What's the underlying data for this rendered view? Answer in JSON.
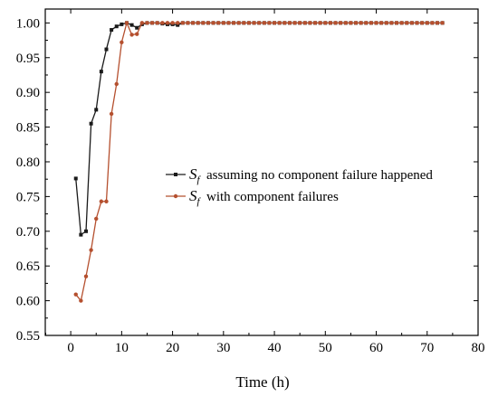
{
  "chart_data": {
    "type": "line",
    "title": "",
    "xlabel": "Time (h)",
    "ylabel": "",
    "xlim": [
      -5,
      80
    ],
    "ylim": [
      0.55,
      1.02
    ],
    "xticks": [
      0,
      10,
      20,
      30,
      40,
      50,
      60,
      70,
      80
    ],
    "yticks": [
      0.55,
      0.6,
      0.65,
      0.7,
      0.75,
      0.8,
      0.85,
      0.9,
      0.95,
      1.0
    ],
    "xtick_labels": [
      "0",
      "10",
      "20",
      "30",
      "40",
      "50",
      "60",
      "70",
      "80"
    ],
    "ytick_labels": [
      "0.55",
      "0.60",
      "0.65",
      "0.70",
      "0.75",
      "0.80",
      "0.85",
      "0.90",
      "0.95",
      "1.00"
    ],
    "grid": false,
    "legend_position": "center-right",
    "series": [
      {
        "name": "assuming no component failure happened",
        "symbol": "S",
        "subscript": "f",
        "color": "#1a1a1a",
        "x": [
          1,
          2,
          3,
          4,
          5,
          6,
          7,
          8,
          9,
          10,
          11,
          12,
          13,
          14,
          15,
          16,
          17,
          18,
          19,
          20,
          21,
          22,
          23,
          24,
          25,
          26,
          27,
          28,
          29,
          30,
          31,
          32,
          33,
          34,
          35,
          36,
          37,
          38,
          39,
          40,
          41,
          42,
          43,
          44,
          45,
          46,
          47,
          48,
          49,
          50,
          51,
          52,
          53,
          54,
          55,
          56,
          57,
          58,
          59,
          60,
          61,
          62,
          63,
          64,
          65,
          66,
          67,
          68,
          69,
          70,
          71,
          72,
          73
        ],
        "y": [
          0.776,
          0.695,
          0.7,
          0.855,
          0.875,
          0.93,
          0.962,
          0.99,
          0.995,
          0.998,
          1.0,
          0.997,
          0.993,
          0.998,
          1.0,
          1.0,
          1.0,
          0.999,
          0.998,
          0.998,
          0.997,
          1.0,
          1.0,
          1.0,
          1.0,
          1.0,
          1.0,
          1.0,
          1.0,
          1.0,
          1.0,
          1.0,
          1.0,
          1.0,
          1.0,
          1.0,
          1.0,
          1.0,
          1.0,
          1.0,
          1.0,
          1.0,
          1.0,
          1.0,
          1.0,
          1.0,
          1.0,
          1.0,
          1.0,
          1.0,
          1.0,
          1.0,
          1.0,
          1.0,
          1.0,
          1.0,
          1.0,
          1.0,
          1.0,
          1.0,
          1.0,
          1.0,
          1.0,
          1.0,
          1.0,
          1.0,
          1.0,
          1.0,
          1.0,
          1.0,
          1.0,
          1.0,
          1.0
        ]
      },
      {
        "name": "with component failures",
        "symbol": "S",
        "subscript": "f",
        "color": "#b5502f",
        "x": [
          1,
          2,
          3,
          4,
          5,
          6,
          7,
          8,
          9,
          10,
          11,
          12,
          13,
          14,
          15,
          16,
          17,
          18,
          19,
          20,
          21,
          22,
          23,
          24,
          25,
          26,
          27,
          28,
          29,
          30,
          31,
          32,
          33,
          34,
          35,
          36,
          37,
          38,
          39,
          40,
          41,
          42,
          43,
          44,
          45,
          46,
          47,
          48,
          49,
          50,
          51,
          52,
          53,
          54,
          55,
          56,
          57,
          58,
          59,
          60,
          61,
          62,
          63,
          64,
          65,
          66,
          67,
          68,
          69,
          70,
          71,
          72,
          73
        ],
        "y": [
          0.609,
          0.6,
          0.635,
          0.673,
          0.718,
          0.743,
          0.743,
          0.869,
          0.912,
          0.972,
          1.0,
          0.983,
          0.984,
          1.0,
          1.0,
          1.0,
          1.0,
          1.0,
          1.0,
          1.0,
          1.0,
          1.0,
          1.0,
          1.0,
          1.0,
          1.0,
          1.0,
          1.0,
          1.0,
          1.0,
          1.0,
          1.0,
          1.0,
          1.0,
          1.0,
          1.0,
          1.0,
          1.0,
          1.0,
          1.0,
          1.0,
          1.0,
          1.0,
          1.0,
          1.0,
          1.0,
          1.0,
          1.0,
          1.0,
          1.0,
          1.0,
          1.0,
          1.0,
          1.0,
          1.0,
          1.0,
          1.0,
          1.0,
          1.0,
          1.0,
          1.0,
          1.0,
          1.0,
          1.0,
          1.0,
          1.0,
          1.0,
          1.0,
          1.0,
          1.0,
          1.0,
          1.0,
          1.0
        ]
      }
    ]
  }
}
